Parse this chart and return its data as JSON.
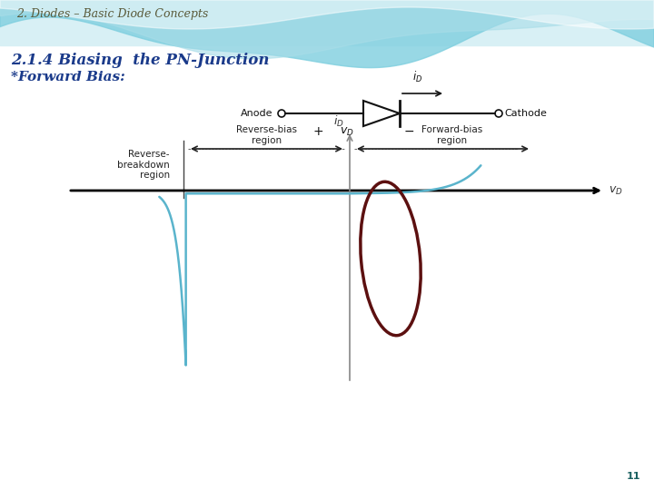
{
  "title1": "2. Diodes – Basic Diode Concepts",
  "title2": "2.1.4 Biasing  the PN-Junction",
  "title3": "*Forward Bias:",
  "curve_color": "#5ab4cc",
  "ellipse_color": "#5c1010",
  "page_number": "11",
  "text_color_title1": "#5a5a3a",
  "text_color_title2": "#1a3a8a",
  "text_color_title3": "#1a3a8a",
  "label_reverse_breakdown": "Reverse-\nbreakdown\nregion",
  "label_reverse_bias": "Reverse-bias\nregion",
  "label_forward_bias": "Forward-bias\nregion"
}
